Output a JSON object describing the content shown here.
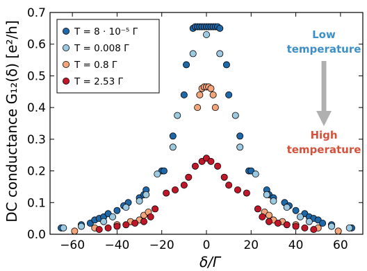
{
  "chart_data": {
    "type": "scatter",
    "title": "",
    "xlabel": "δ/Γ",
    "ylabel": "DC conductance G₁₂(δ) [e²/h]",
    "xlim": [
      -70,
      70
    ],
    "ylim": [
      0,
      0.7
    ],
    "xticks": [
      -60,
      -40,
      -20,
      0,
      20,
      40,
      60
    ],
    "xtick_labels": [
      "−60",
      "−40",
      "−20",
      "0",
      "20",
      "40",
      "60"
    ],
    "yticks": [
      0.0,
      0.1,
      0.2,
      0.3,
      0.4,
      0.5,
      0.6,
      0.7
    ],
    "ytick_labels": [
      "0.0",
      "0.1",
      "0.2",
      "0.3",
      "0.4",
      "0.5",
      "0.6",
      "0.7"
    ],
    "grid": false,
    "legend_position": "top-left",
    "series": [
      {
        "name": "T = 8 · 10⁻⁵ Γ",
        "color": "#1f68a8",
        "x": [
          -65,
          -56,
          -52,
          -50,
          -48,
          -46,
          -44,
          -40,
          -37,
          -35,
          -30,
          -28,
          -27,
          -20,
          -19,
          -15,
          -10,
          -9,
          -6,
          -5,
          -4,
          -3,
          -2,
          -1,
          0,
          1,
          2,
          3,
          4,
          5,
          6,
          9,
          10,
          15,
          19,
          20,
          27,
          28,
          30,
          35,
          37,
          40,
          44,
          46,
          48,
          50,
          52,
          56,
          65
        ],
        "y": [
          0.02,
          0.03,
          0.035,
          0.045,
          0.05,
          0.055,
          0.065,
          0.075,
          0.09,
          0.1,
          0.115,
          0.125,
          0.14,
          0.2,
          0.2,
          0.31,
          0.44,
          0.535,
          0.65,
          0.655,
          0.655,
          0.655,
          0.655,
          0.655,
          0.655,
          0.655,
          0.655,
          0.655,
          0.655,
          0.655,
          0.65,
          0.535,
          0.44,
          0.31,
          0.2,
          0.2,
          0.14,
          0.125,
          0.115,
          0.1,
          0.09,
          0.075,
          0.065,
          0.055,
          0.05,
          0.045,
          0.035,
          0.03,
          0.02
        ]
      },
      {
        "name": "T = 0.008 Γ",
        "color": "#9cc8e0",
        "x": [
          -64,
          -56,
          -46,
          -42,
          -36,
          -30,
          -27,
          -22,
          -15,
          -13,
          -6,
          0,
          6,
          13,
          15,
          22,
          27,
          30,
          36,
          42,
          46,
          56,
          64
        ],
        "y": [
          0.02,
          0.025,
          0.04,
          0.055,
          0.085,
          0.105,
          0.125,
          0.19,
          0.275,
          0.375,
          0.57,
          0.63,
          0.57,
          0.375,
          0.275,
          0.19,
          0.125,
          0.105,
          0.085,
          0.055,
          0.04,
          0.025,
          0.02
        ]
      },
      {
        "name": "T = 0.8 Γ",
        "color": "#f2a47a",
        "x": [
          -59,
          -50,
          -40,
          -34,
          -30,
          -28,
          -26,
          -4,
          -3,
          -2,
          -1,
          0,
          1,
          2,
          3,
          4,
          26,
          28,
          30,
          34,
          40,
          50,
          59
        ],
        "y": [
          0.01,
          0.02,
          0.03,
          0.04,
          0.045,
          0.06,
          0.07,
          0.4,
          0.44,
          0.46,
          0.465,
          0.465,
          0.465,
          0.46,
          0.44,
          0.4,
          0.07,
          0.06,
          0.045,
          0.04,
          0.03,
          0.02,
          0.01
        ]
      },
      {
        "name": "T = 2.53 Γ",
        "color": "#c0162a",
        "x": [
          -48,
          -44,
          -40,
          -36,
          -32,
          -28,
          -25,
          -23,
          -18,
          -14,
          -10,
          -8,
          -5,
          -2,
          0,
          2,
          5,
          8,
          10,
          14,
          18,
          23,
          25,
          28,
          32,
          36,
          40,
          44,
          48
        ],
        "y": [
          0.015,
          0.02,
          0.025,
          0.03,
          0.035,
          0.04,
          0.055,
          0.08,
          0.13,
          0.14,
          0.155,
          0.18,
          0.215,
          0.23,
          0.24,
          0.23,
          0.215,
          0.18,
          0.155,
          0.14,
          0.13,
          0.08,
          0.055,
          0.04,
          0.035,
          0.03,
          0.025,
          0.02,
          0.015
        ]
      }
    ],
    "annotations": {
      "low_line1": "Low",
      "low_line2": "temperature",
      "high_line1": "High",
      "high_line2": "temperature",
      "low_color": "#3d8fc8",
      "high_color": "#d4523c",
      "arrow_color": "#b0b0b0"
    }
  }
}
